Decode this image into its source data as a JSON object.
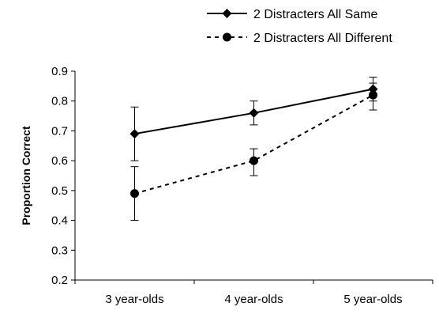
{
  "chart_data": {
    "type": "line",
    "title": "",
    "xlabel": "",
    "ylabel": "Proportion Correct",
    "categories": [
      "3 year-olds",
      "4 year-olds",
      "5 year-olds"
    ],
    "ylim": [
      0.2,
      0.9
    ],
    "yticks": [
      "0.2",
      "0.3",
      "0.4",
      "0.5",
      "0.6",
      "0.7",
      "0.8",
      "0.9"
    ],
    "grid": false,
    "legend_position": "top-right",
    "series": [
      {
        "name": "2 Distracters All Same",
        "values": [
          0.69,
          0.76,
          0.84
        ],
        "error_low": [
          0.6,
          0.72,
          0.8
        ],
        "error_high": [
          0.78,
          0.8,
          0.88
        ],
        "marker": "diamond",
        "line_style": "solid",
        "color": "#000000"
      },
      {
        "name": "2 Distracters All Different",
        "values": [
          0.49,
          0.6,
          0.82
        ],
        "error_low": [
          0.4,
          0.55,
          0.77
        ],
        "error_high": [
          0.58,
          0.64,
          0.86
        ],
        "marker": "circle",
        "line_style": "dashed",
        "color": "#000000"
      }
    ]
  }
}
